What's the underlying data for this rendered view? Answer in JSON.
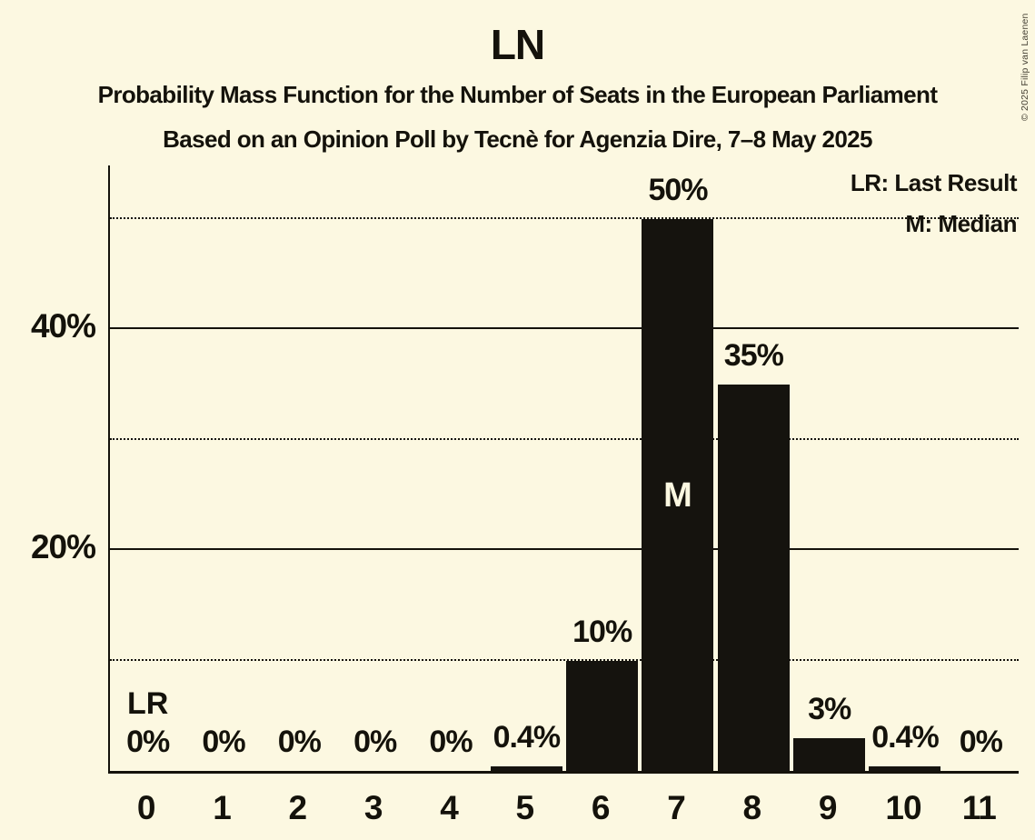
{
  "header": {
    "title": "LN",
    "subtitle": "Probability Mass Function for the Number of Seats in the European Parliament",
    "poll_line": "Based on an Opinion Poll by Tecnè for Agenzia Dire, 7–8 May 2025"
  },
  "copyright": "© 2025 Filip van Laenen",
  "legend": {
    "last_result": "LR: Last Result",
    "median": "M: Median"
  },
  "colors": {
    "background": "#FCF8E1",
    "bar": "#15130E",
    "text": "#14120B",
    "median_label_on_bar": "#FCF8E1"
  },
  "chart_data": {
    "type": "bar",
    "title": "LN",
    "categories": [
      "0",
      "1",
      "2",
      "3",
      "4",
      "5",
      "6",
      "7",
      "8",
      "9",
      "10",
      "11"
    ],
    "values": [
      0,
      0,
      0,
      0,
      0,
      0.4,
      10,
      50,
      35,
      3,
      0.4,
      0
    ],
    "bar_labels": [
      "0%",
      "0%",
      "0%",
      "0%",
      "0%",
      "0.4%",
      "10%",
      "50%",
      "35%",
      "3%",
      "0.4%",
      "0%"
    ],
    "xlabel": "",
    "ylabel": "",
    "ylim": [
      0,
      54
    ],
    "yticks": [
      {
        "value": 20,
        "label": "20%"
      },
      {
        "value": 40,
        "label": "40%"
      }
    ],
    "gridlines": {
      "solid": [
        20,
        40
      ],
      "dotted": [
        10,
        30,
        50
      ]
    },
    "grid": "horizontal",
    "legend_position": "top-right",
    "median": {
      "category": "7",
      "marker": "M"
    },
    "last_result": {
      "category": "0",
      "marker": "LR"
    }
  }
}
